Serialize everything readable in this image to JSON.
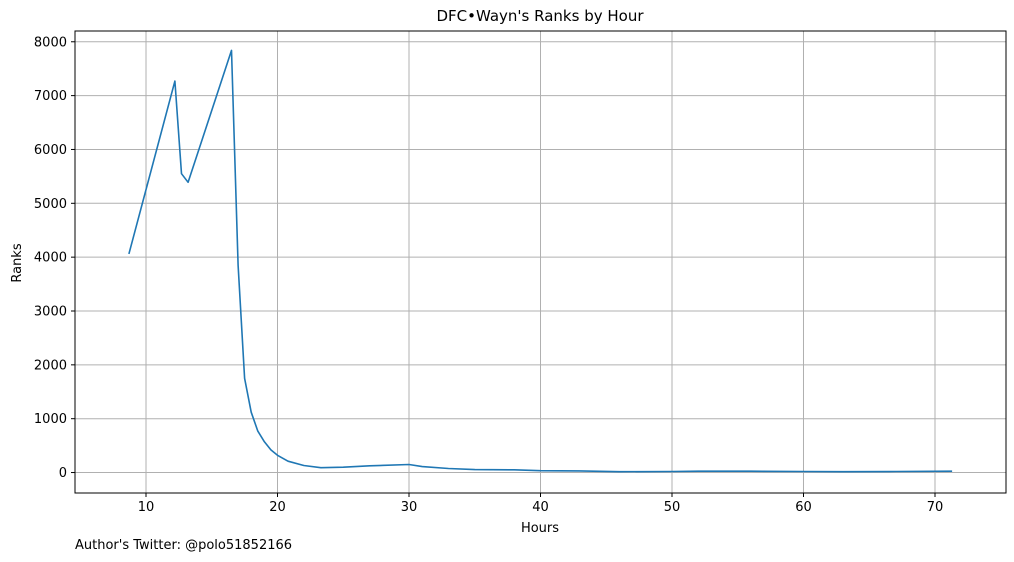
{
  "chart_data": {
    "type": "line",
    "title": "DFC•Wayn's Ranks by Hour",
    "xlabel": "Hours",
    "ylabel": "Ranks",
    "xlim": [
      4.6,
      75.4
    ],
    "ylim": [
      -380,
      8200
    ],
    "x_ticks": [
      10,
      20,
      30,
      40,
      50,
      60,
      70
    ],
    "y_ticks": [
      0,
      1000,
      2000,
      3000,
      4000,
      5000,
      6000,
      7000,
      8000
    ],
    "grid": true,
    "series_color": "#1f77b4",
    "grid_color": "#b0b0b0",
    "series": [
      {
        "x": [
          8.7,
          12.2,
          12.7,
          13.2,
          16.5,
          17.0,
          17.5,
          18.0,
          18.5,
          19.0,
          19.5,
          20.0,
          20.8,
          22.0,
          23.3,
          25.0,
          27.0,
          30.0,
          31.0,
          33.0,
          35.0,
          38.0,
          40.0,
          43.0,
          46.0,
          50.0,
          52.0,
          56.0,
          60.0,
          63.0,
          67.0,
          71.3
        ],
        "y": [
          4060,
          7270,
          5550,
          5390,
          7840,
          3850,
          1750,
          1120,
          770,
          570,
          420,
          320,
          210,
          130,
          90,
          100,
          125,
          150,
          110,
          75,
          55,
          50,
          35,
          30,
          15,
          20,
          25,
          25,
          20,
          15,
          20,
          25
        ]
      }
    ]
  },
  "footnote": "Author's Twitter: @polo51852166"
}
